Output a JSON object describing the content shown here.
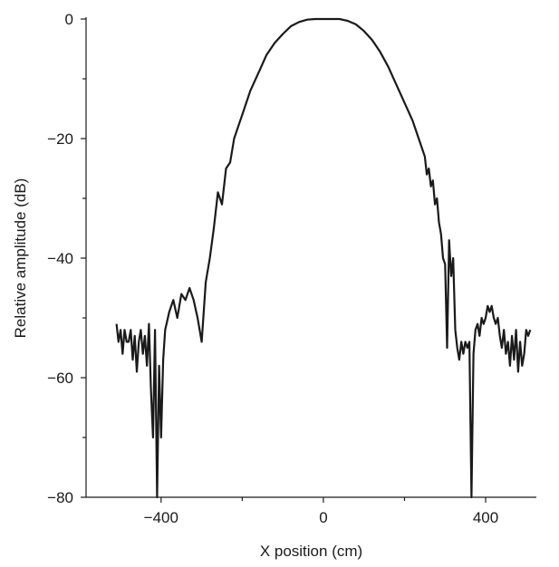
{
  "chart_data": {
    "type": "line",
    "title": "",
    "xlabel": "X position (cm)",
    "ylabel": "Relative amplitude (dB)",
    "xlim": [
      -585,
      525
    ],
    "ylim": [
      -80,
      0
    ],
    "x_ticks": [
      -400,
      0,
      400
    ],
    "x_ticks_minor": [
      -200,
      200
    ],
    "y_ticks": [
      0,
      -20,
      -40,
      -60,
      -80
    ],
    "y_ticks_minor": [
      -10,
      -30,
      -50,
      -70
    ],
    "x_tick_labels": [
      "−400",
      "0",
      "400"
    ],
    "y_tick_labels": [
      "0",
      "−20",
      "−40",
      "−60",
      "−80"
    ],
    "grid": false,
    "legend": "none",
    "line_color": "#1a1a1a",
    "series": [
      {
        "x": [
          -510,
          -505,
          -500,
          -495,
          -490,
          -485,
          -480,
          -475,
          -470,
          -465,
          -460,
          -455,
          -450,
          -445,
          -440,
          -435,
          -430,
          -425,
          -420,
          -415,
          -410,
          -405,
          -400,
          -395,
          -390,
          -380,
          -370,
          -360,
          -350,
          -340,
          -330,
          -320,
          -310,
          -300,
          -290,
          -280,
          -270,
          -260,
          -250,
          -240,
          -230,
          -220,
          -210,
          -200,
          -180,
          -160,
          -140,
          -120,
          -100,
          -80,
          -60,
          -40,
          -20,
          0,
          20,
          30,
          40,
          60,
          80,
          100,
          120,
          140,
          160,
          180,
          200,
          220,
          230,
          240,
          250,
          255,
          260,
          265,
          270,
          275,
          280,
          285,
          290,
          295,
          300,
          305,
          310,
          315,
          320,
          325,
          330,
          335,
          340,
          345,
          350,
          355,
          360,
          365,
          370,
          375,
          380,
          385,
          390,
          395,
          400,
          405,
          410,
          415,
          420,
          425,
          430,
          435,
          440,
          445,
          450,
          455,
          460,
          465,
          470,
          475,
          480,
          485,
          490,
          495,
          500,
          505,
          510
        ],
        "y": [
          -51,
          -54,
          -52,
          -56,
          -52,
          -54,
          -54,
          -52,
          -57,
          -53,
          -59,
          -54,
          -52,
          -56,
          -53,
          -58,
          -51,
          -62,
          -70,
          -52,
          -80,
          -58,
          -70,
          -57,
          -52,
          -49,
          -47,
          -50,
          -46,
          -47,
          -45,
          -47,
          -50,
          -54,
          -44,
          -40,
          -35,
          -29,
          -31,
          -25,
          -24,
          -20,
          -18,
          -16,
          -12,
          -9,
          -6,
          -4,
          -2.5,
          -1.2,
          -0.5,
          -0.1,
          0,
          0,
          0,
          0,
          0,
          -0.3,
          -0.9,
          -2,
          -3.5,
          -5.5,
          -8,
          -11,
          -14,
          -17,
          -19,
          -21,
          -23,
          -26,
          -25,
          -28,
          -27,
          -31,
          -30,
          -34,
          -36,
          -40,
          -41,
          -55,
          -37,
          -43,
          -40,
          -52,
          -55,
          -57,
          -54,
          -56,
          -54,
          -55,
          -54,
          -80,
          -56,
          -52,
          -51,
          -53,
          -50,
          -51,
          -50,
          -48,
          -49,
          -48,
          -50,
          -51,
          -50,
          -53,
          -55,
          -52,
          -56,
          -54,
          -58,
          -53,
          -57,
          -52,
          -59,
          -54,
          -58,
          -56,
          -52,
          -53,
          -52
        ]
      }
    ]
  }
}
